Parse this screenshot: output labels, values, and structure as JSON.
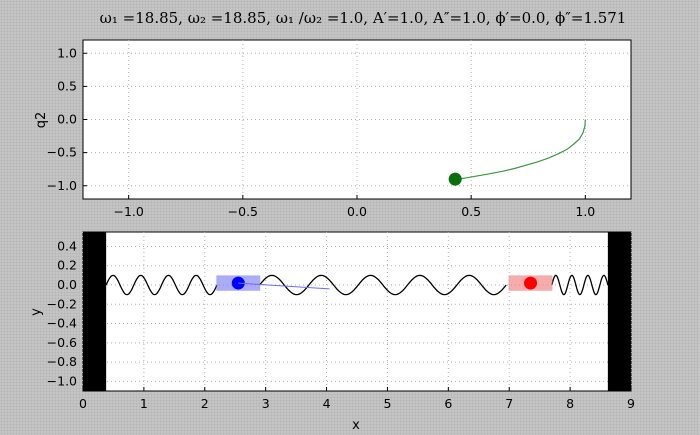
{
  "title": "ω₁ =18.85, ω₂ =18.85, ω₁ /ω₂ =1.0, A′=1.0, A″=1.0, ϕ′=0.0, ϕ″=1.571",
  "colors": {
    "figure_bg": "#c8c8c8",
    "axes_bg": "#ffffff",
    "grid": "#b0b0b0",
    "phase_line": "#3a9a3a",
    "phase_marker": "#0a6e0a",
    "mass1_box": "#8080ee",
    "mass1_dot": "#0000ff",
    "mass2_box": "#f08080",
    "mass2_dot": "#ff0000",
    "link_line": "#6a6aff",
    "wall": "#000000",
    "spring": "#000000"
  },
  "chart_data": [
    {
      "type": "line",
      "name": "phase plot",
      "xlabel": "",
      "ylabel": "q2",
      "xlim": [
        -1.2,
        1.2
      ],
      "ylim": [
        -1.2,
        1.2
      ],
      "xticks": [
        "−1.0",
        "−0.5",
        "0.0",
        "0.5",
        "1.0"
      ],
      "xtick_values": [
        -1.0,
        -0.5,
        0.0,
        0.5,
        1.0
      ],
      "yticks": [
        "1.0",
        "0.5",
        "0.0",
        "−0.5",
        "−1.0"
      ],
      "ytick_values": [
        1.0,
        0.5,
        0.0,
        -0.5,
        -1.0
      ],
      "grid": true,
      "series": [
        {
          "x": [
            1.0,
            0.998,
            0.99,
            0.975,
            0.95,
            0.92,
            0.88,
            0.84,
            0.79,
            0.74,
            0.69,
            0.64,
            0.58,
            0.53,
            0.48,
            0.44
          ],
          "y": [
            0.0,
            -0.1,
            -0.2,
            -0.29,
            -0.37,
            -0.45,
            -0.52,
            -0.58,
            -0.64,
            -0.69,
            -0.74,
            -0.78,
            -0.82,
            -0.85,
            -0.88,
            -0.9
          ]
        }
      ],
      "marker": {
        "x": 0.43,
        "y": -0.9
      }
    },
    {
      "type": "line",
      "name": "mass-spring system",
      "xlabel": "x",
      "ylabel": "y",
      "xlim": [
        0,
        9
      ],
      "ylim": [
        -1.1,
        0.55
      ],
      "xticks": [
        "0",
        "1",
        "2",
        "3",
        "4",
        "5",
        "6",
        "7",
        "8",
        "9"
      ],
      "xtick_values": [
        0,
        1,
        2,
        3,
        4,
        5,
        6,
        7,
        8,
        9
      ],
      "yticks": [
        "0.4",
        "0.2",
        "0.0",
        "−0.2",
        "−0.4",
        "−0.6",
        "−0.8",
        "−1.0"
      ],
      "ytick_values": [
        0.4,
        0.2,
        0.0,
        -0.2,
        -0.4,
        -0.6,
        -0.8,
        -1.0
      ],
      "grid": true,
      "walls": [
        [
          0,
          0.38
        ],
        [
          8.62,
          9
        ]
      ],
      "springs": [
        {
          "x_start": 0.38,
          "x_end": 2.2,
          "amplitude": 0.1,
          "cycles": 4
        },
        {
          "x_start": 2.9,
          "x_end": 6.95,
          "amplitude": 0.1,
          "cycles": 5
        },
        {
          "x_start": 7.7,
          "x_end": 8.62,
          "amplitude": 0.1,
          "cycles": 3.5
        }
      ],
      "masses": [
        {
          "x": 2.55,
          "y": 0.02,
          "half_width": 0.36,
          "half_height": 0.08
        },
        {
          "x": 7.35,
          "y": 0.02,
          "half_width": 0.36,
          "half_height": 0.08
        }
      ],
      "link": {
        "x": [
          2.55,
          4.05
        ],
        "y": [
          0.02,
          -0.04
        ]
      }
    }
  ]
}
